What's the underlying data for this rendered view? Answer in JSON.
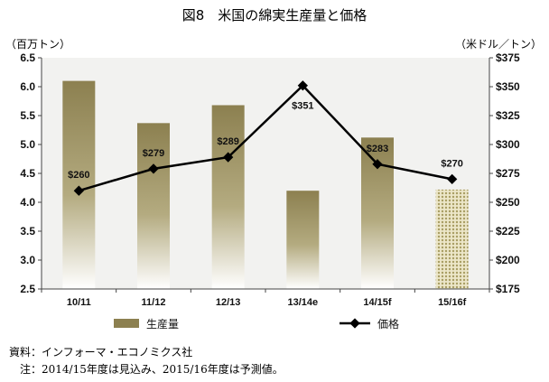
{
  "title": "図8　米国の綿実生産量と価格",
  "y_left_unit": "（百万トン）",
  "y_right_unit": "（米ドル／トン）",
  "source": "資料：インフォーマ・エコノミクス社",
  "footnote": "注：2014/15年度は見込み、2015/16年度は予測値。",
  "colors": {
    "bar": "#8c8050",
    "bar_projected": "#c9bd7e",
    "line": "#000000",
    "plot_bg": "#f2f2f0"
  },
  "chart_data": {
    "type": "bar+line",
    "categories": [
      "10/11",
      "11/12",
      "12/13",
      "13/14e",
      "14/15f",
      "15/16f"
    ],
    "series": [
      {
        "name": "生産量",
        "type": "bar",
        "axis": "left",
        "values": [
          6.1,
          5.37,
          5.68,
          4.2,
          5.12,
          4.22
        ],
        "projected_index": 5
      },
      {
        "name": "価格",
        "type": "line",
        "axis": "right",
        "values": [
          260,
          279,
          289,
          351,
          283,
          270
        ],
        "data_labels": [
          "$260",
          "$279",
          "$289",
          "$351",
          "$283",
          "$270"
        ]
      }
    ],
    "y_left": {
      "min": 2.5,
      "max": 6.5,
      "ticks": [
        "2.5",
        "3.0",
        "3.5",
        "4.0",
        "4.5",
        "5.0",
        "5.5",
        "6.0",
        "6.5"
      ]
    },
    "y_right": {
      "min": 175,
      "max": 375,
      "ticks": [
        "$175",
        "$200",
        "$225",
        "$250",
        "$275",
        "$300",
        "$325",
        "$350",
        "$375"
      ]
    },
    "grid": false,
    "legend_position": "bottom"
  }
}
